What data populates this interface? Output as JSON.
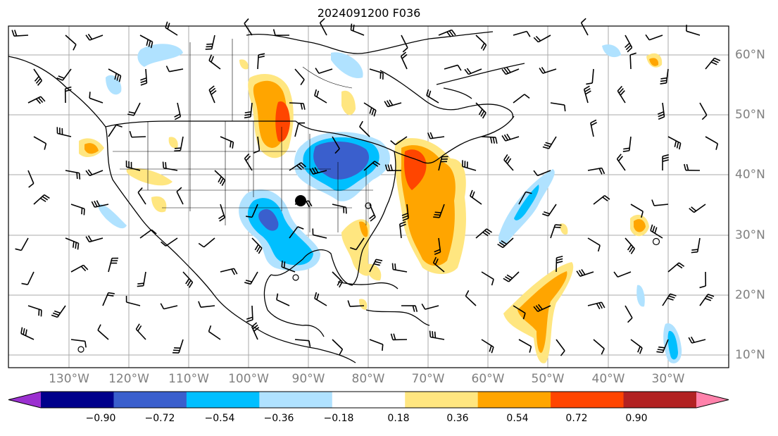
{
  "title": "2024091200 F036",
  "lat_labels": [
    "60°N",
    "50°N",
    "40°N",
    "30°N",
    "20°N",
    "10°N"
  ],
  "lon_labels": [
    "130°W",
    "120°W",
    "110°W",
    "100°W",
    "90°W",
    "80°W",
    "70°W",
    "60°W",
    "50°W",
    "40°W",
    "30°W"
  ],
  "colorbar": {
    "ticks": [
      "−0.90",
      "−0.72",
      "−0.54",
      "−0.36",
      "−0.18",
      "0.18",
      "0.36",
      "0.54",
      "0.72",
      "0.90"
    ],
    "colors": [
      "#9b30d0",
      "#00008b",
      "#3a5fcd",
      "#00bfff",
      "#b0e2ff",
      "#ffffff",
      "#ffe680",
      "#ffa500",
      "#ff4500",
      "#b22222",
      "#ff82ab"
    ]
  },
  "colors": {
    "grid": "#aaaaaa",
    "coast": "#000000",
    "label_gray": "#808080"
  }
}
